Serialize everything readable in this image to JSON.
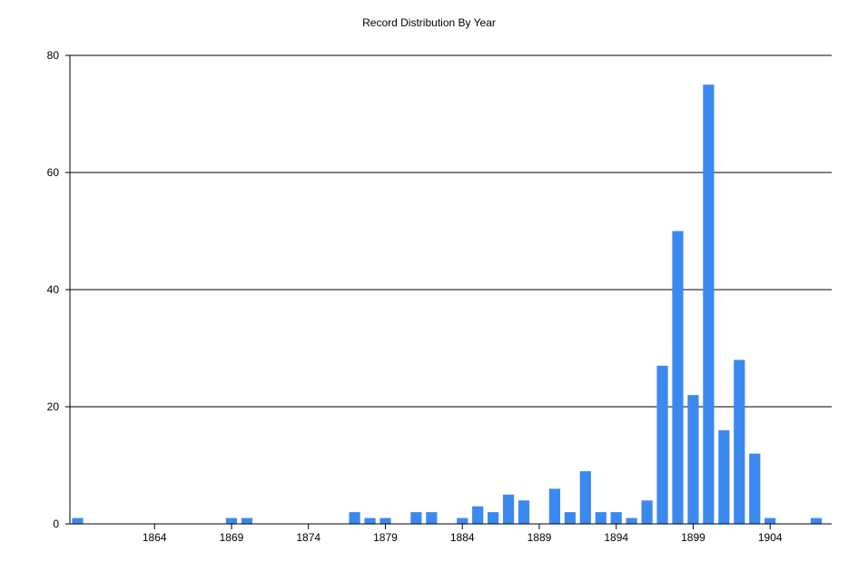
{
  "chart_data": {
    "type": "bar",
    "title": "Record Distribution By Year",
    "xlabel": "",
    "ylabel": "",
    "ylim": [
      0,
      80
    ],
    "y_ticks": [
      0,
      20,
      40,
      60,
      80
    ],
    "x_ticks": [
      1864,
      1869,
      1874,
      1879,
      1884,
      1889,
      1894,
      1899,
      1904
    ],
    "xlim": [
      1858.5,
      1908
    ],
    "grid": true,
    "legend": "none",
    "bar_color": "#3b89ee",
    "categories": [
      1859,
      1869,
      1870,
      1877,
      1878,
      1879,
      1881,
      1882,
      1884,
      1885,
      1886,
      1887,
      1888,
      1890,
      1891,
      1892,
      1893,
      1894,
      1895,
      1896,
      1897,
      1898,
      1899,
      1900,
      1901,
      1902,
      1903,
      1904,
      1907
    ],
    "values": [
      1,
      1,
      1,
      2,
      1,
      1,
      2,
      2,
      1,
      3,
      2,
      5,
      4,
      6,
      2,
      9,
      2,
      2,
      1,
      4,
      27,
      50,
      22,
      75,
      16,
      28,
      12,
      1,
      1
    ]
  }
}
